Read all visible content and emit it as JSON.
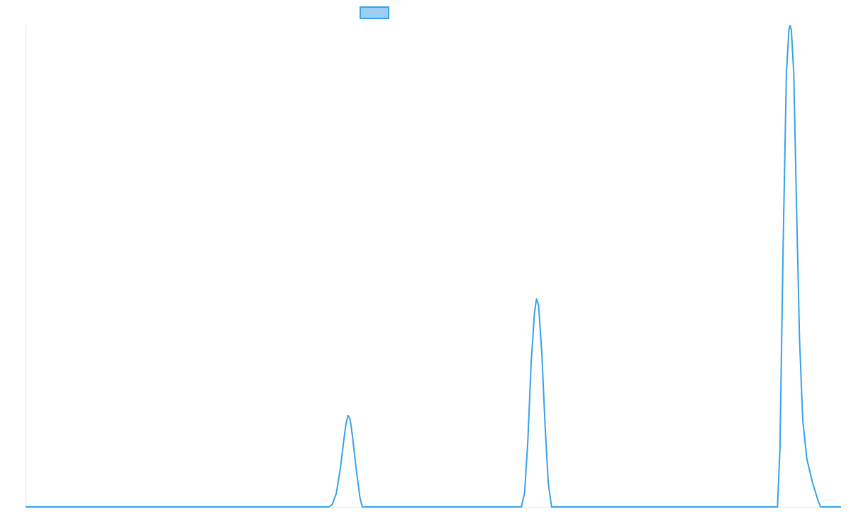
{
  "chart_data": {
    "type": "line",
    "title": "",
    "xlabel": "",
    "ylabel": "",
    "x_range": [
      0,
      100
    ],
    "y_range": [
      0,
      100
    ],
    "grid": false,
    "legend": {
      "placement": "top-center",
      "entries": [
        {
          "name": "",
          "color": "#36A2EB",
          "fill": "#9AD0F5"
        }
      ]
    },
    "series": [
      {
        "name": "",
        "color": "#36A2EB",
        "points": [
          [
            0,
            0
          ],
          [
            37.2,
            0
          ],
          [
            37.6,
            0.5
          ],
          [
            38.1,
            2.8
          ],
          [
            38.6,
            8.0
          ],
          [
            39.0,
            13.5
          ],
          [
            39.3,
            17.3
          ],
          [
            39.55,
            19.0
          ],
          [
            39.8,
            18.2
          ],
          [
            40.1,
            14.5
          ],
          [
            40.5,
            8.5
          ],
          [
            41.0,
            2.0
          ],
          [
            41.3,
            0
          ],
          [
            60.8,
            0
          ],
          [
            61.2,
            3.0
          ],
          [
            61.6,
            14.0
          ],
          [
            62.0,
            30.0
          ],
          [
            62.4,
            40.2
          ],
          [
            62.65,
            43.2
          ],
          [
            62.9,
            42.0
          ],
          [
            63.3,
            32.0
          ],
          [
            63.7,
            17.0
          ],
          [
            64.1,
            5.0
          ],
          [
            64.5,
            0
          ],
          [
            92.2,
            0
          ],
          [
            92.5,
            12.0
          ],
          [
            92.9,
            55.0
          ],
          [
            93.3,
            90.0
          ],
          [
            93.6,
            99.0
          ],
          [
            93.75,
            100.0
          ],
          [
            93.9,
            99.0
          ],
          [
            94.2,
            90.0
          ],
          [
            94.5,
            65.0
          ],
          [
            94.9,
            35.0
          ],
          [
            95.3,
            18.0
          ],
          [
            95.8,
            10.0
          ],
          [
            96.5,
            5.0
          ],
          [
            97.2,
            1.2
          ],
          [
            97.5,
            0
          ],
          [
            100,
            0
          ]
        ]
      }
    ]
  }
}
